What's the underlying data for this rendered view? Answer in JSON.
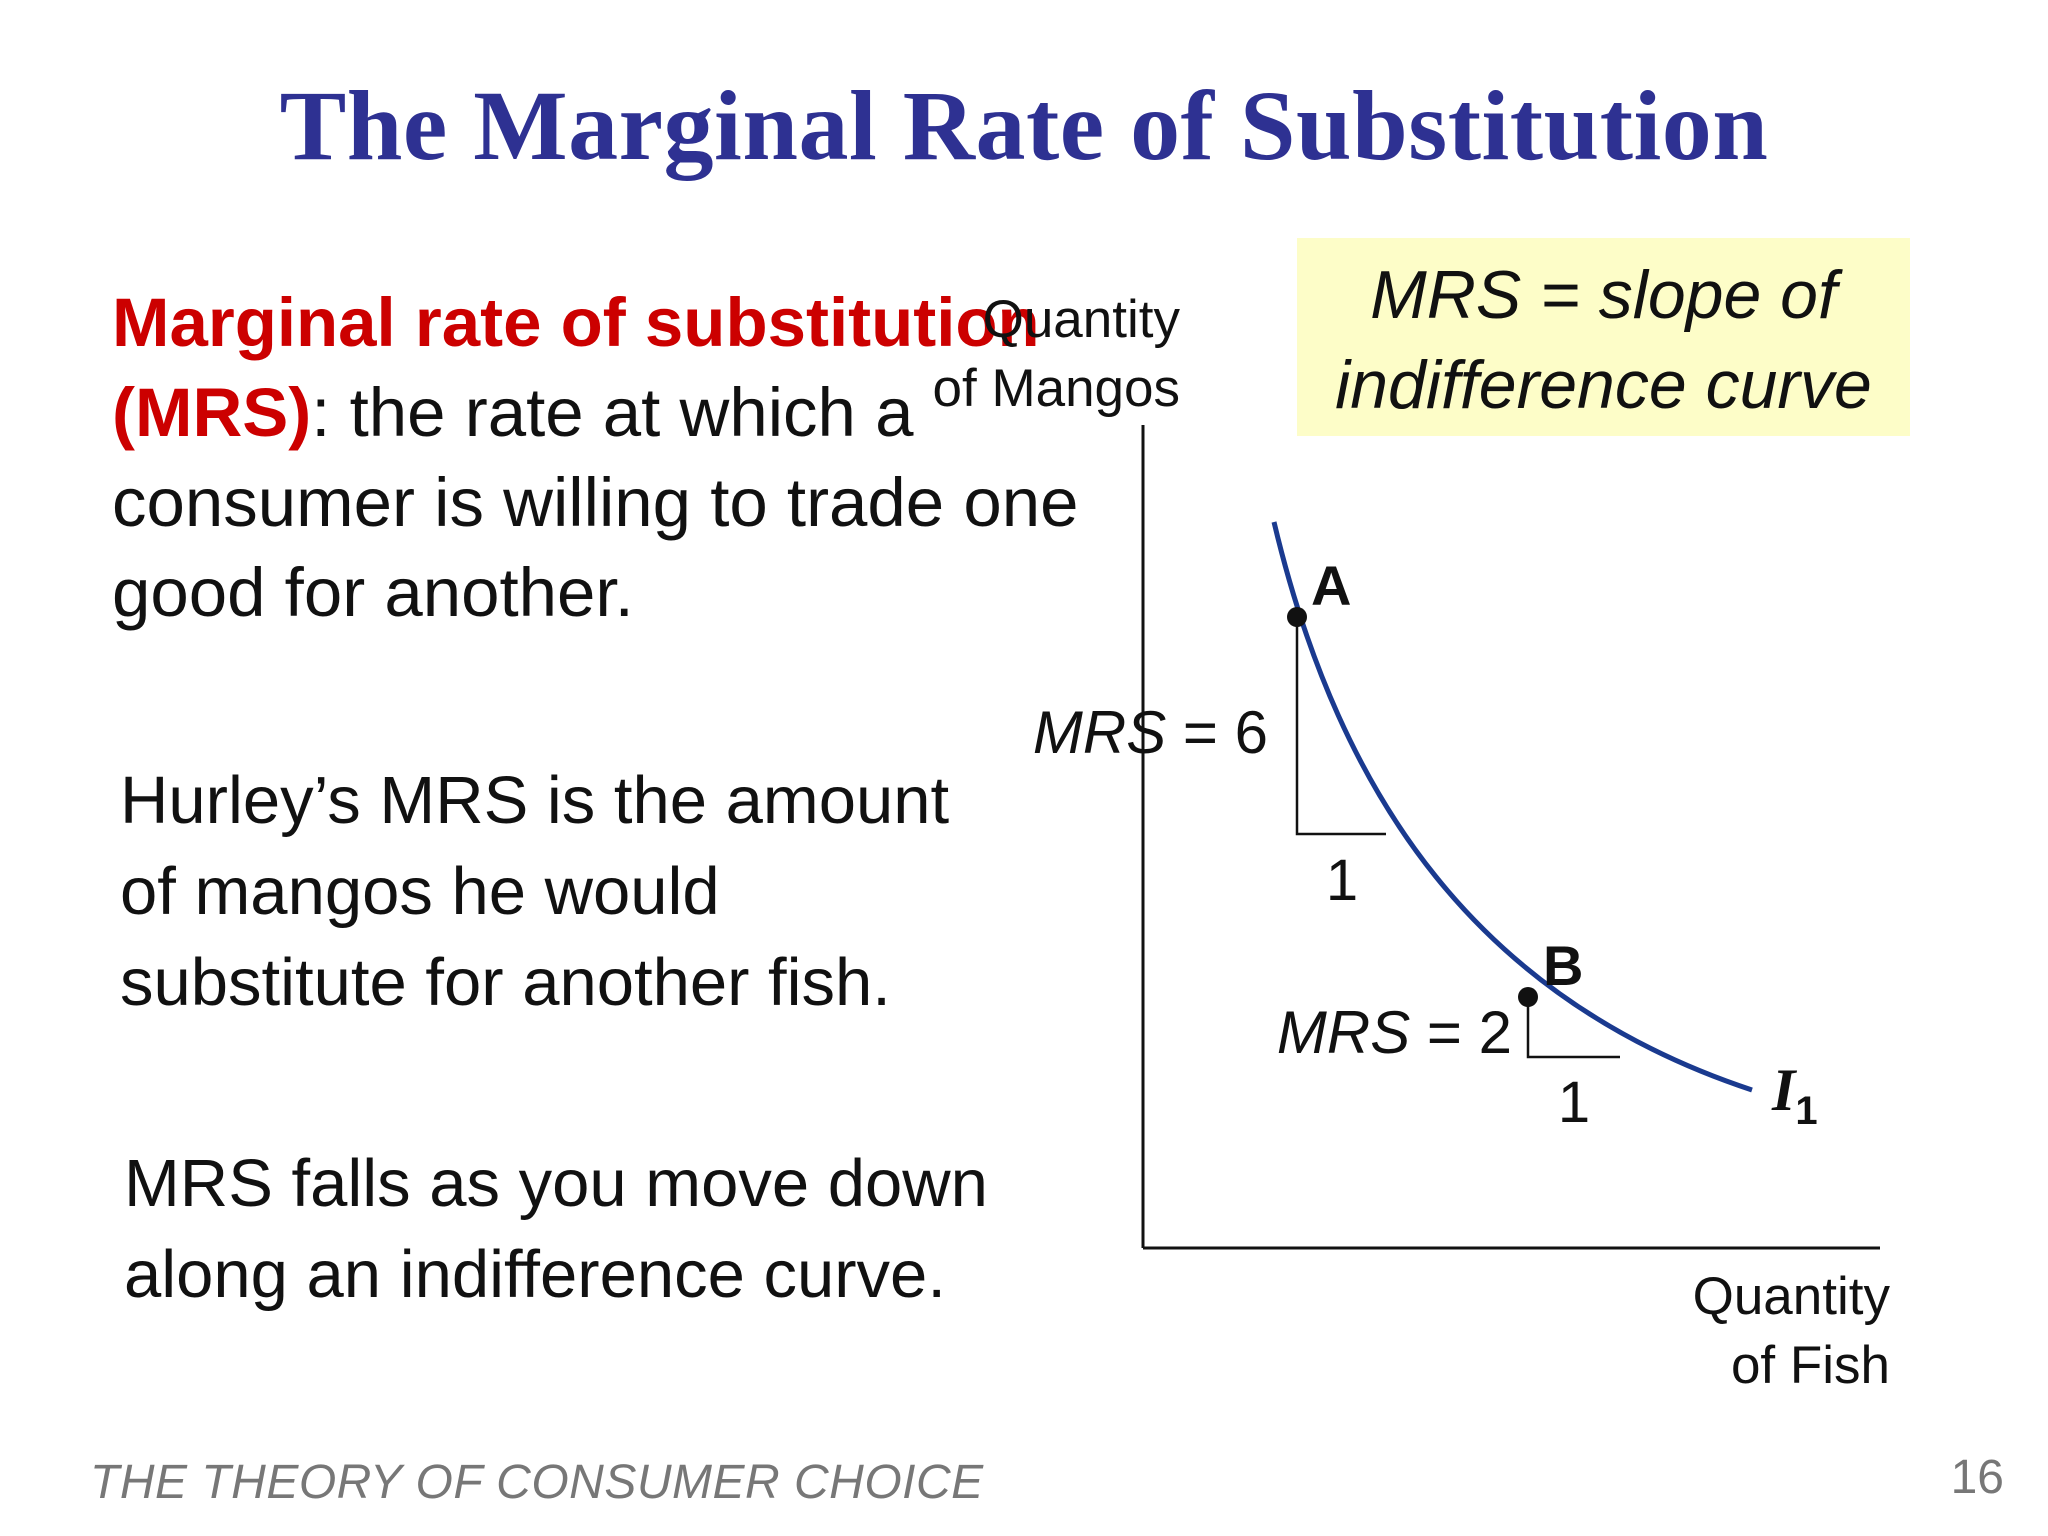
{
  "slide": {
    "title": "The Marginal Rate of Substitution",
    "definition": {
      "term": "Marginal rate of substitution (MRS)",
      "colon": ":",
      "text": "the rate at which a consumer is willing to trade one good for another."
    },
    "paragraph_hurley": "Hurley’s MRS is the amount of mangos he would substitute for another fish.",
    "paragraph_falls": "MRS falls as you move down along an indifference curve.",
    "callout": {
      "line1": "MRS = slope of",
      "line2": "indifference curve"
    },
    "footer": "THE THEORY OF CONSUMER CHOICE",
    "page_number": "16"
  },
  "diagram": {
    "y_axis_label": {
      "line1": "Quantity",
      "line2": "of Mangos"
    },
    "x_axis_label": {
      "line1": "Quantity",
      "line2": "of Fish"
    },
    "curve_label": {
      "letter": "I",
      "subscript": "1"
    },
    "point_a": {
      "label": "A",
      "mrs_italic": "MRS",
      "mrs_rest": " = 6",
      "run": "1"
    },
    "point_b": {
      "label": "B",
      "mrs_italic": "MRS",
      "mrs_rest": " = 2",
      "run": "1"
    },
    "colors": {
      "curve": "#1a3a8f",
      "title": "#2e3192",
      "term": "#cc0000",
      "callout_bg": "#fdfdc8"
    }
  }
}
